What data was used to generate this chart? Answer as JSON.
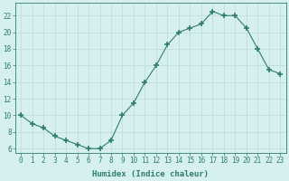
{
  "x": [
    0,
    1,
    2,
    3,
    4,
    5,
    6,
    7,
    8,
    9,
    10,
    11,
    12,
    13,
    14,
    15,
    16,
    17,
    18,
    19,
    20,
    21,
    22,
    23
  ],
  "y": [
    10,
    9,
    8.5,
    7.5,
    7,
    6.5,
    6,
    6,
    7,
    10,
    11.5,
    14,
    16,
    18.5,
    20,
    20.5,
    21,
    22.5,
    22,
    22,
    20.5,
    18,
    15.5,
    15
  ],
  "line_color": "#2e7d6e",
  "marker": "+",
  "marker_size": 4,
  "bg_color": "#d6f0f0",
  "grid_color": "#c0dede",
  "xlabel": "Humidex (Indice chaleur)",
  "xlim": [
    -0.5,
    23.5
  ],
  "ylim": [
    5.5,
    23.5
  ],
  "yticks": [
    6,
    8,
    10,
    12,
    14,
    16,
    18,
    20,
    22
  ],
  "xticks": [
    0,
    1,
    2,
    3,
    4,
    5,
    6,
    7,
    8,
    9,
    10,
    11,
    12,
    13,
    14,
    15,
    16,
    17,
    18,
    19,
    20,
    21,
    22,
    23
  ],
  "tick_color": "#2e7d6e",
  "label_fontsize": 6.5,
  "tick_fontsize": 5.5,
  "linewidth": 0.8,
  "marker_thickness": 1.2
}
